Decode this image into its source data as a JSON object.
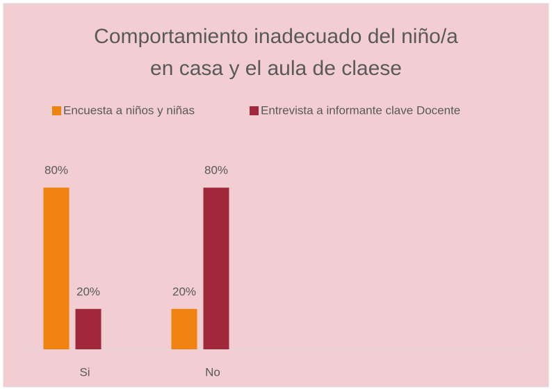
{
  "chart_data": {
    "type": "bar",
    "title": [
      "Comportamiento inadecuado del niño/a",
      "en casa y el aula de claese"
    ],
    "categories": [
      "Si",
      "No",
      null,
      null
    ],
    "series": [
      {
        "name": "Encuesta a niños y niñas",
        "color": "#f0820f",
        "values": [
          80,
          20,
          null,
          null
        ],
        "value_labels": [
          "80%",
          "20%",
          null,
          null
        ]
      },
      {
        "name": "Entrevista a informante clave Docente",
        "color": "#a0283a",
        "values": [
          20,
          80,
          null,
          null
        ],
        "value_labels": [
          "20%",
          "80%",
          null,
          null
        ]
      }
    ],
    "ylim": [
      0,
      100
    ],
    "legend": "top"
  }
}
